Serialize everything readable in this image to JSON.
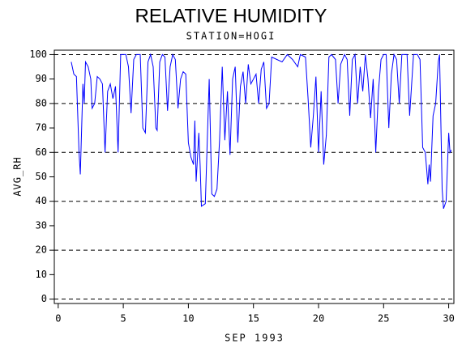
{
  "chart_data": {
    "type": "line",
    "title": "RELATIVE HUMIDITY",
    "subtitle": "STATION=HOGI",
    "x_label": "SEP 1993",
    "y_label": "AVG_RH",
    "xlim": [
      -0.3,
      30.4
    ],
    "xticks": [
      0,
      5,
      10,
      15,
      20,
      25,
      30
    ],
    "ylim": [
      -1.8,
      101.8
    ],
    "yticks": [
      0,
      10,
      20,
      30,
      40,
      50,
      60,
      70,
      80,
      90,
      100
    ],
    "grid_lines": [
      0,
      20,
      40,
      60,
      80,
      100
    ],
    "grid": true,
    "series": [
      {
        "color": "#0000ff",
        "x": [
          1.0,
          1.2,
          1.4,
          1.6,
          1.7,
          1.9,
          2.0,
          2.1,
          2.3,
          2.5,
          2.6,
          2.8,
          3.0,
          3.2,
          3.4,
          3.6,
          3.8,
          4.0,
          4.2,
          4.4,
          4.6,
          4.8,
          5.2,
          5.4,
          5.6,
          5.8,
          6.0,
          6.3,
          6.5,
          6.7,
          6.9,
          7.1,
          7.3,
          7.5,
          7.6,
          7.8,
          8.0,
          8.2,
          8.4,
          8.6,
          8.8,
          9.0,
          9.2,
          9.4,
          9.6,
          9.8,
          10.0,
          10.2,
          10.4,
          10.5,
          10.6,
          10.8,
          10.9,
          11.0,
          11.3,
          11.6,
          11.8,
          12.0,
          12.2,
          12.4,
          12.6,
          12.8,
          13.0,
          13.2,
          13.4,
          13.6,
          13.8,
          14.0,
          14.2,
          14.4,
          14.6,
          14.8,
          15.0,
          15.2,
          15.4,
          15.6,
          15.8,
          16.0,
          16.2,
          16.4,
          16.8,
          17.2,
          17.6,
          18.0,
          18.4,
          18.6,
          19.0,
          19.2,
          19.4,
          19.6,
          19.8,
          20.0,
          20.2,
          20.4,
          20.6,
          20.8,
          21.0,
          21.3,
          21.5,
          21.7,
          22.0,
          22.2,
          22.4,
          22.6,
          22.8,
          23.0,
          23.2,
          23.4,
          23.6,
          23.8,
          24.0,
          24.2,
          24.4,
          24.6,
          24.8,
          25.0,
          25.2,
          25.4,
          25.6,
          25.8,
          26.0,
          26.2,
          26.4,
          26.8,
          27.0,
          27.3,
          27.6,
          27.8,
          28.0,
          28.2,
          28.4,
          28.5,
          28.6,
          28.8,
          29.0,
          29.2,
          29.3,
          29.5,
          29.6,
          29.8,
          30.0,
          30.1,
          30.2
        ],
        "values": [
          97,
          92,
          91,
          60,
          51,
          88,
          80,
          97,
          95,
          90,
          78,
          80,
          91,
          90,
          88,
          60,
          85,
          88,
          82,
          87,
          60,
          100,
          100,
          95,
          76,
          98,
          100,
          100,
          70,
          68,
          97,
          100,
          95,
          70,
          69,
          97,
          100,
          99,
          77,
          95,
          100,
          98,
          78,
          90,
          93,
          92,
          64,
          58,
          55,
          73,
          48,
          68,
          55,
          38,
          39,
          90,
          43,
          42,
          45,
          65,
          95,
          65,
          85,
          59,
          90,
          95,
          64,
          87,
          93,
          80,
          96,
          88,
          90,
          92,
          80,
          94,
          97,
          78,
          80,
          99,
          98,
          97,
          100,
          98,
          95,
          100,
          99,
          82,
          62,
          75,
          91,
          60,
          85,
          55,
          67,
          99,
          100,
          98,
          80,
          96,
          100,
          98,
          75,
          98,
          100,
          80,
          95,
          85,
          100,
          90,
          74,
          90,
          60,
          85,
          98,
          100,
          100,
          70,
          92,
          100,
          98,
          80,
          100,
          100,
          75,
          100,
          100,
          98,
          62,
          60,
          47,
          55,
          48,
          75,
          80,
          97,
          100,
          45,
          37,
          40,
          68,
          60,
          61
        ]
      }
    ]
  }
}
